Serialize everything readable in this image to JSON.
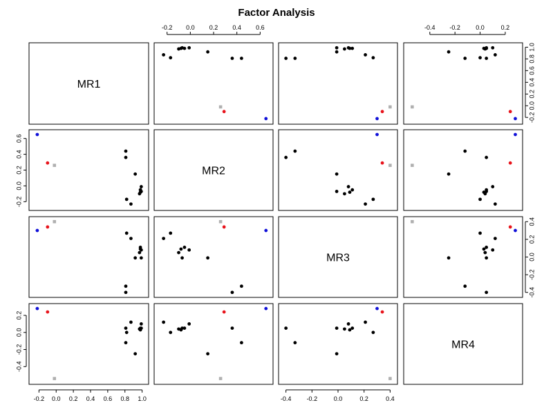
{
  "title": "Factor Analysis",
  "chart_data": {
    "type": "scatter",
    "variables": [
      "MR1",
      "MR2",
      "MR3",
      "MR4"
    ],
    "axes": {
      "MR1": {
        "range": [
          -0.26,
          1.02
        ],
        "ticks": [
          "-0.2",
          "0.0",
          "0.2",
          "0.4",
          "0.6",
          "0.8",
          "1.0"
        ],
        "tick_values": [
          -0.2,
          0.0,
          0.2,
          0.4,
          0.6,
          0.8,
          1.0
        ]
      },
      "MR2": {
        "range": [
          -0.27,
          0.67
        ],
        "ticks": [
          "-0.2",
          "0.0",
          "0.2",
          "0.4",
          "0.6"
        ],
        "tick_values": [
          -0.2,
          0.0,
          0.2,
          0.4,
          0.6
        ]
      },
      "MR3": {
        "range": [
          -0.42,
          0.42
        ],
        "ticks": [
          "-0.4",
          "-0.2",
          "0.0",
          "0.2",
          "0.4"
        ],
        "tick_values": [
          -0.4,
          -0.2,
          0.0,
          0.2,
          0.4
        ]
      },
      "MR4": {
        "range": [
          -0.57,
          0.3
        ],
        "ticks": [
          "-0.4",
          "-0.2",
          "0.0",
          "0.2"
        ],
        "tick_values": [
          -0.4,
          -0.2,
          0.0,
          0.2
        ]
      }
    },
    "points": [
      {
        "MR1": 0.98,
        "MR2": -0.05,
        "MR3": 0.11,
        "MR4": 0.05,
        "color": "#000000",
        "shape": "circle"
      },
      {
        "MR1": 0.99,
        "MR2": -0.01,
        "MR3": 0.08,
        "MR4": 0.1,
        "color": "#000000",
        "shape": "circle"
      },
      {
        "MR1": 0.97,
        "MR2": -0.1,
        "MR3": 0.05,
        "MR4": 0.04,
        "color": "#000000",
        "shape": "circle"
      },
      {
        "MR1": 0.99,
        "MR2": -0.07,
        "MR3": -0.01,
        "MR4": 0.05,
        "color": "#000000",
        "shape": "circle"
      },
      {
        "MR1": 0.98,
        "MR2": -0.08,
        "MR3": 0.09,
        "MR4": 0.03,
        "color": "#000000",
        "shape": "circle"
      },
      {
        "MR1": 0.92,
        "MR2": 0.15,
        "MR3": -0.01,
        "MR4": -0.25,
        "color": "#000000",
        "shape": "circle"
      },
      {
        "MR1": 0.87,
        "MR2": -0.23,
        "MR3": 0.21,
        "MR4": 0.12,
        "color": "#000000",
        "shape": "circle"
      },
      {
        "MR1": 0.81,
        "MR2": 0.36,
        "MR3": -0.4,
        "MR4": 0.05,
        "color": "#000000",
        "shape": "circle"
      },
      {
        "MR1": 0.81,
        "MR2": 0.44,
        "MR3": -0.33,
        "MR4": -0.12,
        "color": "#000000",
        "shape": "circle"
      },
      {
        "MR1": 0.82,
        "MR2": -0.17,
        "MR3": 0.27,
        "MR4": 0.0,
        "color": "#000000",
        "shape": "circle"
      },
      {
        "MR1": -0.1,
        "MR2": 0.29,
        "MR3": 0.34,
        "MR4": 0.24,
        "color": "#e8141c",
        "shape": "circle"
      },
      {
        "MR1": -0.22,
        "MR2": 0.65,
        "MR3": 0.3,
        "MR4": 0.28,
        "color": "#1010d8",
        "shape": "circle"
      },
      {
        "MR1": -0.02,
        "MR2": 0.26,
        "MR3": 0.4,
        "MR4": -0.54,
        "color": "#b0b0b0",
        "shape": "square"
      }
    ],
    "grid": false
  }
}
